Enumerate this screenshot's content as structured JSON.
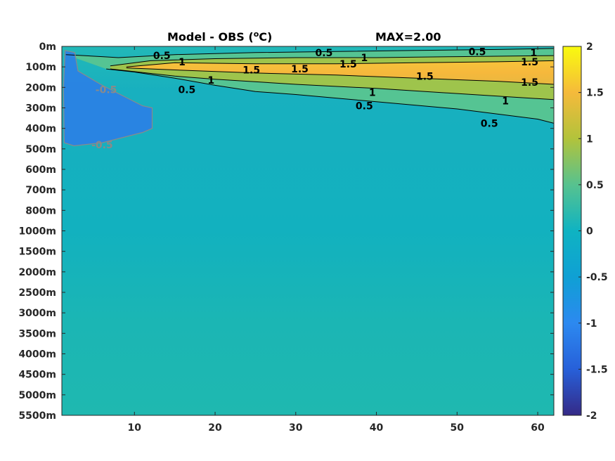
{
  "chart_data": {
    "type": "heatmap",
    "title": "Model - OBS (",
    "title_unit_sup": "o",
    "title_unit": "C)",
    "annotation": "MAX=2.00",
    "x_ticks": [
      10,
      20,
      30,
      40,
      50,
      60
    ],
    "xlim": [
      1,
      62
    ],
    "y_tick_labels": [
      "0m",
      "100m",
      "200m",
      "300m",
      "400m",
      "500m",
      "600m",
      "700m",
      "800m",
      "1000m",
      "1500m",
      "2000m",
      "2500m",
      "3000m",
      "3500m",
      "4000m",
      "4500m",
      "5000m",
      "5500m"
    ],
    "colorbar": {
      "range": [
        -2,
        2
      ],
      "ticks": [
        "2",
        "1.5",
        "1",
        "0.5",
        "0",
        "-0.5",
        "-1",
        "-1.5",
        "-2"
      ],
      "colormap": "parula"
    },
    "contour_lines": [
      {
        "level": 0.5,
        "color": "#000000",
        "label": "0.5",
        "upper": [
          [
            1.5,
            0.4
          ],
          [
            6,
            0.5
          ],
          [
            8,
            0.55
          ],
          [
            15,
            0.4
          ],
          [
            25,
            0.3
          ],
          [
            35,
            0.25
          ],
          [
            45,
            0.2
          ],
          [
            55,
            0.15
          ],
          [
            62,
            0.1
          ]
        ],
        "lower": [
          [
            6.5,
            1.1
          ],
          [
            10,
            1.25
          ],
          [
            15,
            1.55
          ],
          [
            20,
            1.9
          ],
          [
            25,
            2.2
          ],
          [
            30,
            2.35
          ],
          [
            40,
            2.7
          ],
          [
            50,
            3.05
          ],
          [
            55,
            3.3
          ],
          [
            60,
            3.55
          ],
          [
            62,
            3.75
          ]
        ]
      },
      {
        "level": 1,
        "color": "#000000",
        "label": "1",
        "upper": [
          [
            7,
            0.95
          ],
          [
            12,
            0.7
          ],
          [
            20,
            0.6
          ],
          [
            30,
            0.55
          ],
          [
            40,
            0.55
          ],
          [
            50,
            0.5
          ],
          [
            62,
            0.45
          ]
        ],
        "lower": [
          [
            7,
            1.1
          ],
          [
            15,
            1.45
          ],
          [
            20,
            1.6
          ],
          [
            30,
            1.85
          ],
          [
            40,
            2.05
          ],
          [
            50,
            2.3
          ],
          [
            62,
            2.6
          ]
        ]
      },
      {
        "level": 1.5,
        "color": "#000000",
        "label": "1.5",
        "upper": [
          [
            9,
            1.0
          ],
          [
            15,
            0.8
          ],
          [
            25,
            0.85
          ],
          [
            35,
            0.85
          ],
          [
            45,
            0.8
          ],
          [
            55,
            0.75
          ],
          [
            62,
            0.7
          ]
        ],
        "lower": [
          [
            9,
            1.05
          ],
          [
            15,
            1.15
          ],
          [
            25,
            1.3
          ],
          [
            35,
            1.4
          ],
          [
            45,
            1.55
          ],
          [
            55,
            1.7
          ],
          [
            62,
            1.85
          ]
        ]
      },
      {
        "level": -0.5,
        "color": "#8a8a8a",
        "label": "-0.5",
        "outline": [
          [
            1.4,
            0.2
          ],
          [
            2.6,
            0.3
          ],
          [
            3,
            1.2
          ],
          [
            6,
            1.9
          ],
          [
            11,
            2.9
          ],
          [
            12.2,
            3.0
          ],
          [
            12.2,
            4.0
          ],
          [
            11,
            4.2
          ],
          [
            6,
            4.7
          ],
          [
            2.5,
            4.85
          ],
          [
            1.3,
            4.7
          ],
          [
            1.2,
            2
          ]
        ]
      }
    ],
    "contour_labels": [
      {
        "text": "0.5",
        "x": 13.4,
        "y": 0.45
      },
      {
        "text": "1",
        "x": 15.9,
        "y": 0.75
      },
      {
        "text": "1.5",
        "x": 24.5,
        "y": 1.15
      },
      {
        "text": "0.5",
        "x": 16.5,
        "y": 2.1
      },
      {
        "text": "1",
        "x": 19.5,
        "y": 1.65
      },
      {
        "text": "1.5",
        "x": 30.5,
        "y": 1.1
      },
      {
        "text": "0.5",
        "x": 33.5,
        "y": 0.3
      },
      {
        "text": "1",
        "x": 38.5,
        "y": 0.55
      },
      {
        "text": "1.5",
        "x": 36.5,
        "y": 0.85
      },
      {
        "text": "1.5",
        "x": 46,
        "y": 1.45
      },
      {
        "text": "1",
        "x": 39.5,
        "y": 2.25
      },
      {
        "text": "0.5",
        "x": 38.5,
        "y": 2.9
      },
      {
        "text": "0.5",
        "x": 52.5,
        "y": 0.25
      },
      {
        "text": "1",
        "x": 59.5,
        "y": 0.3
      },
      {
        "text": "1.5",
        "x": 59,
        "y": 0.75
      },
      {
        "text": "1.5",
        "x": 59,
        "y": 1.75
      },
      {
        "text": "1",
        "x": 56,
        "y": 2.65
      },
      {
        "text": "0.5",
        "x": 54,
        "y": 3.75
      },
      {
        "text": "-0.5",
        "x": 6.5,
        "y": 2.1
      },
      {
        "text": "-0.5",
        "x": 6,
        "y": 4.8
      }
    ],
    "grid": false,
    "legend": "colorbar-right"
  }
}
